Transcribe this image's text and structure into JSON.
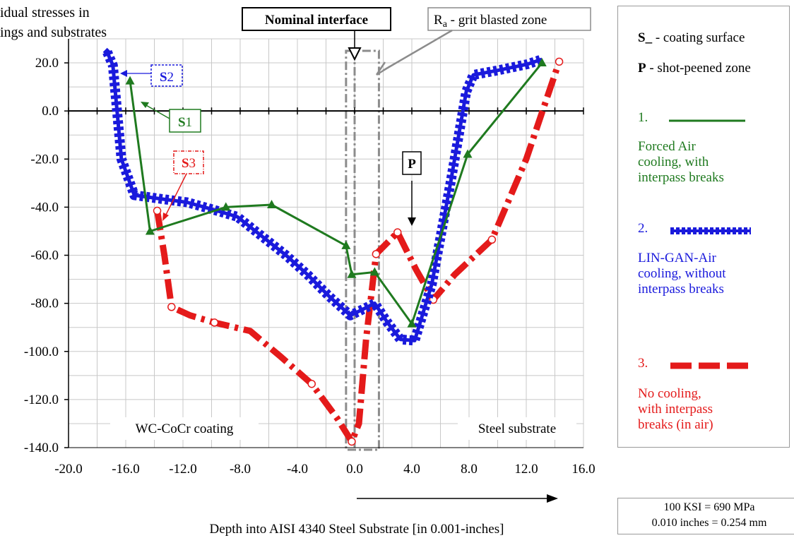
{
  "chart_data": {
    "type": "line",
    "title": "...idual stresses in ...ings and substrates",
    "title_lines": [
      "idual stresses in",
      "ings and substrates"
    ],
    "xlabel": "Depth into AISI 4340 Steel Substrate [in 0.001-inches]",
    "xlim": [
      -20,
      16
    ],
    "ylim": [
      -140,
      30
    ],
    "xticks": [
      -20,
      -16,
      -12,
      -8,
      -4,
      0,
      4,
      8,
      12,
      16
    ],
    "xtick_labels": [
      "-20.0",
      "-16.0",
      "-12.0",
      "-8.0",
      "-4.0",
      "0.0",
      "4.0",
      "8.0",
      "12.0",
      "16.0"
    ],
    "yticks": [
      20,
      0,
      -20,
      -40,
      -60,
      -80,
      -100,
      -120,
      -140
    ],
    "ytick_labels": [
      "20.0",
      "0.0",
      "-20.0",
      "-40.0",
      "-60.0",
      "-80.0",
      "-100.0",
      "-120.0",
      "-140.0"
    ],
    "grid": true,
    "legend_position": "right",
    "series": [
      {
        "name": "Forced Air cooling, with interpass breaks",
        "color": "#1f7a1f",
        "marker": "triangle",
        "style": "solid",
        "x": [
          -15.7,
          -14.3,
          -9.0,
          -5.8,
          -0.6,
          -0.2,
          1.4,
          4.0,
          7.9,
          13.1
        ],
        "y": [
          12.5,
          -50.0,
          -40.0,
          -39.0,
          -56.0,
          -68.0,
          -67.0,
          -88.5,
          -18.0,
          20.0
        ]
      },
      {
        "name": "LIN-GAN-Air cooling, without interpass breaks",
        "color": "#1a1adc",
        "marker": "diamond",
        "style": "thick-dotted",
        "x": [
          -17.3,
          -16.9,
          -16.3,
          -15.4,
          -13.6,
          -11.7,
          -9.9,
          -8.2,
          -6.5,
          -4.8,
          -3.3,
          -1.8,
          -0.3,
          0.4,
          1.4,
          2.3,
          3.2,
          4.2,
          5.4,
          6.7,
          7.8,
          8.3,
          10.1,
          12.1,
          13.1
        ],
        "y": [
          24.5,
          19.0,
          -20.0,
          -35.0,
          -36.5,
          -38.0,
          -41.0,
          -44.0,
          -52.0,
          -60.0,
          -68.0,
          -77.0,
          -85.0,
          -83.0,
          -80.0,
          -88.0,
          -95.0,
          -95.5,
          -72.0,
          -30.0,
          8.0,
          15.0,
          17.0,
          19.5,
          21.5
        ]
      },
      {
        "name": "No cooling, with interpass breaks (in air)",
        "color": "#e41a1a",
        "marker": "circle",
        "style": "thick-dashed",
        "x": [
          -13.8,
          -13.3,
          -12.8,
          -11.5,
          -9.8,
          -7.3,
          -5.2,
          -3.0,
          -1.2,
          -0.2,
          0.3,
          0.8,
          1.5,
          3.0,
          4.3,
          5.5,
          7.0,
          9.6,
          12.0,
          14.3
        ],
        "y": [
          -41.5,
          -60.0,
          -81.5,
          -85.0,
          -88.0,
          -91.5,
          -102.0,
          -113.5,
          -128.0,
          -137.5,
          -130.0,
          -95.0,
          -59.5,
          -50.5,
          -66.0,
          -78.5,
          -68.0,
          -53.5,
          -20.0,
          20.5
        ]
      }
    ],
    "annotations": {
      "nominal_interface": "Nominal interface",
      "ra_zone_prefix": "R",
      "ra_zone_sub": "a",
      "ra_zone_suffix": " - grit blasted zone",
      "s2_letter": "S",
      "s2_num": "2",
      "s1_letter": "S",
      "s1_num": "1",
      "s3_letter": "S",
      "s3_num": "3",
      "p_label": "P",
      "coating_region": "WC-CoCr coating",
      "substrate_region": "Steel substrate"
    }
  },
  "legend": {
    "surface_key": "S_",
    "surface_desc": " - coating surface",
    "peened_key": "P",
    "peened_desc": " - shot-peened zone",
    "item1_num": "1.",
    "item1_lines": [
      "Forced Air",
      "cooling, with",
      "interpass breaks"
    ],
    "item2_num": "2.",
    "item2_lines": [
      "LIN-GAN-Air",
      "cooling, without",
      "interpass breaks"
    ],
    "item3_num": "3.",
    "item3_lines": [
      "No cooling,",
      "with interpass",
      "breaks (in air)"
    ]
  },
  "conversions": {
    "line1": "100 KSI = 690 MPa",
    "line2": "0.010 inches = 0.254 mm"
  },
  "colors": {
    "green": "#1f7a1f",
    "blue": "#1a1adc",
    "red": "#e41a1a",
    "grid": "#c8c8c8",
    "grey_frame": "#8c8c8c"
  }
}
